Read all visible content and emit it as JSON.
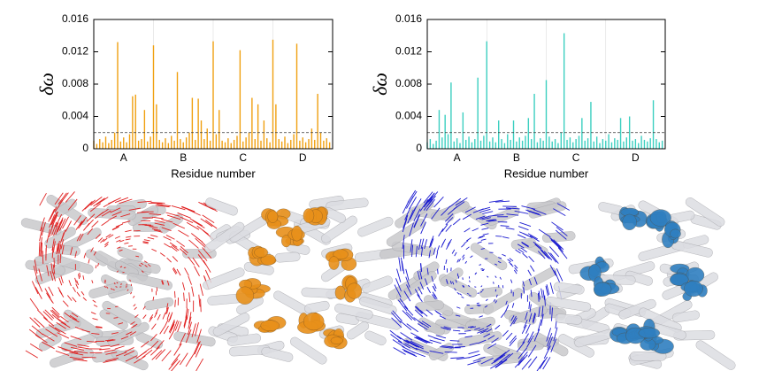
{
  "chart_data": [
    {
      "type": "spike",
      "y_label": "δω",
      "x_label": "Residue number",
      "color": "#f0a010",
      "threshold": 0.002,
      "xlim": [
        0,
        80
      ],
      "ylim": [
        0,
        0.016
      ],
      "yticks": [
        0,
        0.004,
        0.008,
        0.012,
        0.016
      ],
      "xticks": [
        {
          "value": 10,
          "label": "A"
        },
        {
          "value": 30,
          "label": "B"
        },
        {
          "value": 50,
          "label": "C"
        },
        {
          "value": 70,
          "label": "D"
        }
      ],
      "separators": [
        20,
        40,
        60
      ],
      "x": [
        0,
        1,
        2,
        3,
        4,
        5,
        6,
        7,
        8,
        9,
        10,
        11,
        12,
        13,
        14,
        15,
        16,
        17,
        18,
        19,
        20,
        21,
        22,
        23,
        24,
        25,
        26,
        27,
        28,
        29,
        30,
        31,
        32,
        33,
        34,
        35,
        36,
        37,
        38,
        39,
        40,
        41,
        42,
        43,
        44,
        45,
        46,
        47,
        48,
        49,
        50,
        51,
        52,
        53,
        54,
        55,
        56,
        57,
        58,
        59,
        60,
        61,
        62,
        63,
        64,
        65,
        66,
        67,
        68,
        69,
        70,
        71,
        72,
        73,
        74,
        75,
        76,
        77,
        78,
        79
      ],
      "values": [
        0.001,
        0.0006,
        0.0012,
        0.0008,
        0.0015,
        0.0007,
        0.0011,
        0.002,
        0.0132,
        0.0009,
        0.0014,
        0.0008,
        0.0018,
        0.0065,
        0.0067,
        0.001,
        0.0012,
        0.0048,
        0.0009,
        0.0015,
        0.0128,
        0.0055,
        0.0011,
        0.0008,
        0.0013,
        0.0007,
        0.0016,
        0.001,
        0.0095,
        0.0012,
        0.0008,
        0.0014,
        0.002,
        0.0063,
        0.0011,
        0.0062,
        0.0035,
        0.0012,
        0.0025,
        0.001,
        0.0133,
        0.0018,
        0.0048,
        0.001,
        0.0008,
        0.0013,
        0.0007,
        0.0011,
        0.0016,
        0.0122,
        0.0009,
        0.0014,
        0.002,
        0.0063,
        0.0012,
        0.0055,
        0.001,
        0.0035,
        0.0013,
        0.0008,
        0.0135,
        0.0055,
        0.0012,
        0.0009,
        0.0015,
        0.0007,
        0.0011,
        0.0018,
        0.013,
        0.001,
        0.0014,
        0.0008,
        0.0012,
        0.0025,
        0.0011,
        0.0068,
        0.002,
        0.001,
        0.0013,
        0.0008
      ]
    },
    {
      "type": "spike",
      "y_label": "δω",
      "x_label": "Residue number",
      "color": "#3ccfc0",
      "threshold": 0.002,
      "xlim": [
        0,
        80
      ],
      "ylim": [
        0,
        0.016
      ],
      "yticks": [
        0,
        0.004,
        0.008,
        0.012,
        0.016
      ],
      "xticks": [
        {
          "value": 10,
          "label": "A"
        },
        {
          "value": 30,
          "label": "B"
        },
        {
          "value": 50,
          "label": "C"
        },
        {
          "value": 70,
          "label": "D"
        }
      ],
      "separators": [
        20,
        40,
        60
      ],
      "x": [
        0,
        1,
        2,
        3,
        4,
        5,
        6,
        7,
        8,
        9,
        10,
        11,
        12,
        13,
        14,
        15,
        16,
        17,
        18,
        19,
        20,
        21,
        22,
        23,
        24,
        25,
        26,
        27,
        28,
        29,
        30,
        31,
        32,
        33,
        34,
        35,
        36,
        37,
        38,
        39,
        40,
        41,
        42,
        43,
        44,
        45,
        46,
        47,
        48,
        49,
        50,
        51,
        52,
        53,
        54,
        55,
        56,
        57,
        58,
        59,
        60,
        61,
        62,
        63,
        64,
        65,
        66,
        67,
        68,
        69,
        70,
        71,
        72,
        73,
        74,
        75,
        76,
        77,
        78,
        79
      ],
      "values": [
        0.0008,
        0.0012,
        0.0006,
        0.001,
        0.0048,
        0.0014,
        0.0042,
        0.0018,
        0.0082,
        0.0009,
        0.0013,
        0.0007,
        0.0045,
        0.0011,
        0.0015,
        0.0008,
        0.0012,
        0.0088,
        0.001,
        0.0016,
        0.0133,
        0.0009,
        0.0014,
        0.0008,
        0.0035,
        0.0012,
        0.0007,
        0.0018,
        0.0011,
        0.0035,
        0.0009,
        0.0014,
        0.001,
        0.0016,
        0.0038,
        0.0012,
        0.0068,
        0.0008,
        0.0013,
        0.001,
        0.0085,
        0.0015,
        0.0009,
        0.0012,
        0.0007,
        0.002,
        0.0143,
        0.0011,
        0.0014,
        0.0008,
        0.0012,
        0.0016,
        0.0038,
        0.001,
        0.0013,
        0.0058,
        0.0009,
        0.0015,
        0.0007,
        0.0012,
        0.001,
        0.0018,
        0.0008,
        0.0013,
        0.0011,
        0.0038,
        0.0009,
        0.0014,
        0.004,
        0.001,
        0.0012,
        0.0007,
        0.0016,
        0.0011,
        0.0009,
        0.0013,
        0.006,
        0.0012,
        0.0008,
        0.001
      ]
    }
  ]
}
